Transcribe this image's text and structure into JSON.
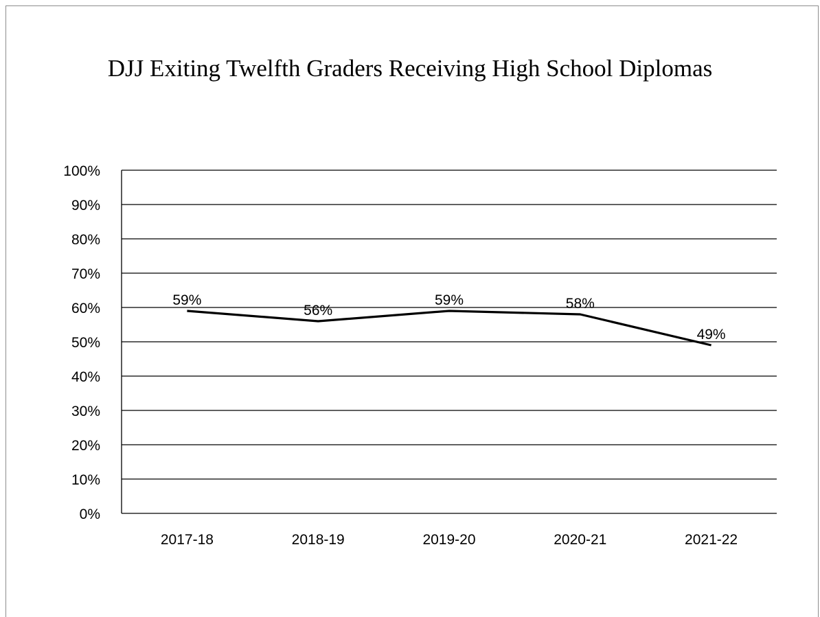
{
  "chart_data": {
    "type": "line",
    "title": "DJJ Exiting Twelfth Graders Receiving High School Diplomas",
    "xlabel": "",
    "ylabel": "",
    "categories": [
      "2017-18",
      "2018-19",
      "2019-20",
      "2020-21",
      "2021-22"
    ],
    "series": [
      {
        "values": [
          59,
          56,
          59,
          58,
          49
        ],
        "data_labels": [
          "59%",
          "56%",
          "59%",
          "58%",
          "49%"
        ],
        "color": "#000000"
      }
    ],
    "y_ticks": [
      0,
      10,
      20,
      30,
      40,
      50,
      60,
      70,
      80,
      90,
      100
    ],
    "y_tick_labels": [
      "0%",
      "10%",
      "20%",
      "30%",
      "40%",
      "50%",
      "60%",
      "70%",
      "80%",
      "90%",
      "100%"
    ],
    "ylim": [
      0,
      100
    ],
    "grid": true,
    "legend": "none"
  }
}
